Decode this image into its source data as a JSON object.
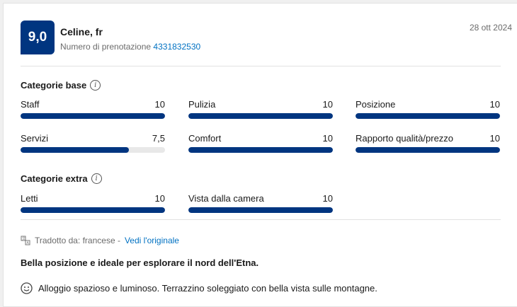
{
  "review": {
    "score": "9,0",
    "reviewer": "Celine, fr",
    "booking_label": "Numero di prenotazione",
    "booking_number": "4331832530",
    "date": "28 ott 2024"
  },
  "base": {
    "title": "Categorie base",
    "items": [
      {
        "label": "Staff",
        "value": "10",
        "fraction": 1.0
      },
      {
        "label": "Pulizia",
        "value": "10",
        "fraction": 1.0
      },
      {
        "label": "Posizione",
        "value": "10",
        "fraction": 1.0
      },
      {
        "label": "Servizi",
        "value": "7,5",
        "fraction": 0.75
      },
      {
        "label": "Comfort",
        "value": "10",
        "fraction": 1.0
      },
      {
        "label": "Rapporto qualità/prezzo",
        "value": "10",
        "fraction": 1.0
      }
    ]
  },
  "extra": {
    "title": "Categorie extra",
    "items": [
      {
        "label": "Letti",
        "value": "10",
        "fraction": 1.0
      },
      {
        "label": "Vista dalla camera",
        "value": "10",
        "fraction": 1.0
      }
    ]
  },
  "translation": {
    "text": "Tradotto da: francese -",
    "link": "Vedi l'originale"
  },
  "headline": "Bella posizione e ideale per esplorare il nord dell'Etna.",
  "positive": "Alloggio spazioso e luminoso. Terrazzino soleggiato con bella vista sulle montagne.",
  "colors": {
    "brand": "#003580",
    "link": "#0071c2"
  }
}
